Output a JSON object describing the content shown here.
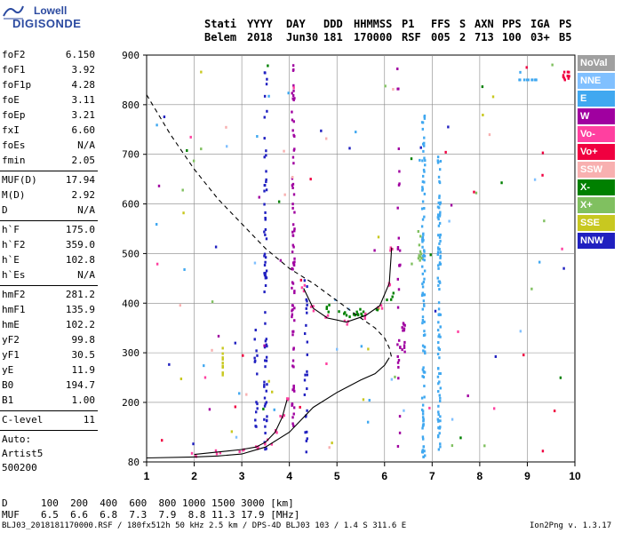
{
  "logo": {
    "line1": "Lowell",
    "line2": "DIGISONDE"
  },
  "header": {
    "labels": [
      "Stati",
      "YYYY",
      "DAY",
      "DDD",
      "HHMMSS",
      "P1",
      "FFS",
      "S",
      "AXN",
      "PPS",
      "IGA",
      "PS"
    ],
    "values": [
      "Belem",
      "2018",
      "Jun30",
      "181",
      "170000",
      "RSF",
      "005",
      "2",
      "713",
      "100",
      "03+",
      "B5"
    ]
  },
  "params": {
    "group1": [
      {
        "name": "foF2",
        "value": "6.150"
      },
      {
        "name": "foF1",
        "value": "3.92"
      },
      {
        "name": "foF1p",
        "value": "4.28"
      },
      {
        "name": "foE",
        "value": "3.11"
      },
      {
        "name": "foEp",
        "value": "3.21"
      },
      {
        "name": "fxI",
        "value": "6.60"
      },
      {
        "name": "foEs",
        "value": "N/A"
      },
      {
        "name": "fmin",
        "value": "2.05"
      }
    ],
    "group2": [
      {
        "name": "MUF(D)",
        "value": "17.94"
      },
      {
        "name": "M(D)",
        "value": "2.92"
      },
      {
        "name": "D",
        "value": "N/A"
      }
    ],
    "group3": [
      {
        "name": "h`F",
        "value": "175.0"
      },
      {
        "name": "h`F2",
        "value": "359.0"
      },
      {
        "name": "h`E",
        "value": "102.8"
      },
      {
        "name": "h`Es",
        "value": "N/A"
      }
    ],
    "group4": [
      {
        "name": "hmF2",
        "value": "281.2"
      },
      {
        "name": "hmF1",
        "value": "135.9"
      },
      {
        "name": "hmE",
        "value": "102.2"
      },
      {
        "name": "yF2",
        "value": "99.8"
      },
      {
        "name": "yF1",
        "value": "30.5"
      },
      {
        "name": "yE",
        "value": "11.9"
      },
      {
        "name": "B0",
        "value": "194.7"
      },
      {
        "name": "B1",
        "value": "1.00"
      }
    ],
    "clevel": {
      "name": "C-level",
      "value": "11"
    },
    "auto": [
      "Auto:",
      "Artist5",
      "500200"
    ]
  },
  "legend": [
    {
      "label": "NoVal",
      "color": "#a0a0a0"
    },
    {
      "label": "NNE",
      "color": "#80c0ff"
    },
    {
      "label": "E",
      "color": "#40a8f0"
    },
    {
      "label": "W",
      "color": "#a000a0"
    },
    {
      "label": "Vo-",
      "color": "#ff40a0"
    },
    {
      "label": "Vo+",
      "color": "#f00040"
    },
    {
      "label": "SSW",
      "color": "#f8b0b0"
    },
    {
      "label": "X-",
      "color": "#008000"
    },
    {
      "label": "X+",
      "color": "#80c060"
    },
    {
      "label": "SSE",
      "color": "#c8c820"
    },
    {
      "label": "NNW",
      "color": "#2020c0"
    }
  ],
  "chart_data": {
    "type": "scatter",
    "x_ticks": [
      1,
      2,
      3,
      4,
      5,
      6,
      7,
      8,
      9,
      10
    ],
    "y_ticks": [
      80,
      200,
      300,
      400,
      500,
      600,
      700,
      800,
      900
    ],
    "xlim": [
      1,
      10
    ],
    "ylim": [
      80,
      900
    ],
    "xlabel": "",
    "ylabel": "",
    "grid": true,
    "profile_curve": [
      [
        1,
        88
      ],
      [
        2,
        90
      ],
      [
        2.5,
        92
      ],
      [
        3,
        96
      ],
      [
        3.5,
        110
      ],
      [
        4,
        140
      ],
      [
        4.5,
        190
      ],
      [
        5,
        220
      ],
      [
        5.5,
        245
      ],
      [
        5.8,
        258
      ],
      [
        6,
        275
      ],
      [
        6.1,
        290
      ]
    ],
    "virtual_trace_lower": [
      [
        2,
        95
      ],
      [
        2.5,
        100
      ],
      [
        3,
        105
      ],
      [
        3.3,
        110
      ],
      [
        3.5,
        120
      ],
      [
        3.7,
        140
      ],
      [
        3.85,
        170
      ],
      [
        3.95,
        205
      ]
    ],
    "virtual_trace_upper": [
      [
        4.3,
        430
      ],
      [
        4.5,
        390
      ],
      [
        4.8,
        370
      ],
      [
        5.2,
        362
      ],
      [
        5.6,
        375
      ],
      [
        5.9,
        395
      ],
      [
        6.1,
        440
      ],
      [
        6.15,
        512
      ]
    ],
    "dashed_curve": [
      [
        1,
        820
      ],
      [
        1.5,
        740
      ],
      [
        2,
        670
      ],
      [
        2.5,
        610
      ],
      [
        3,
        560
      ],
      [
        3.5,
        510
      ],
      [
        4,
        470
      ],
      [
        4.5,
        440
      ],
      [
        5,
        405
      ],
      [
        5.5,
        370
      ],
      [
        5.8,
        350
      ],
      [
        6,
        330
      ],
      [
        6.1,
        310
      ],
      [
        6.15,
        290
      ]
    ]
  },
  "bottom": {
    "d_label": "D",
    "d_values": "100  200  400  600  800 1000 1500 3000 [km]",
    "muf_label": "MUF",
    "muf_values": "6.5  6.6  6.8  7.3  7.9  8.8 11.3 17.9 [MHz]",
    "footer": "BLJ03_2018181170000.RSF / 180fx512h 50 kHz 2.5 km / DPS-4D BLJ03 103 / 1.4 S 311.6 E",
    "version": "Ion2Png v. 1.3.17"
  }
}
